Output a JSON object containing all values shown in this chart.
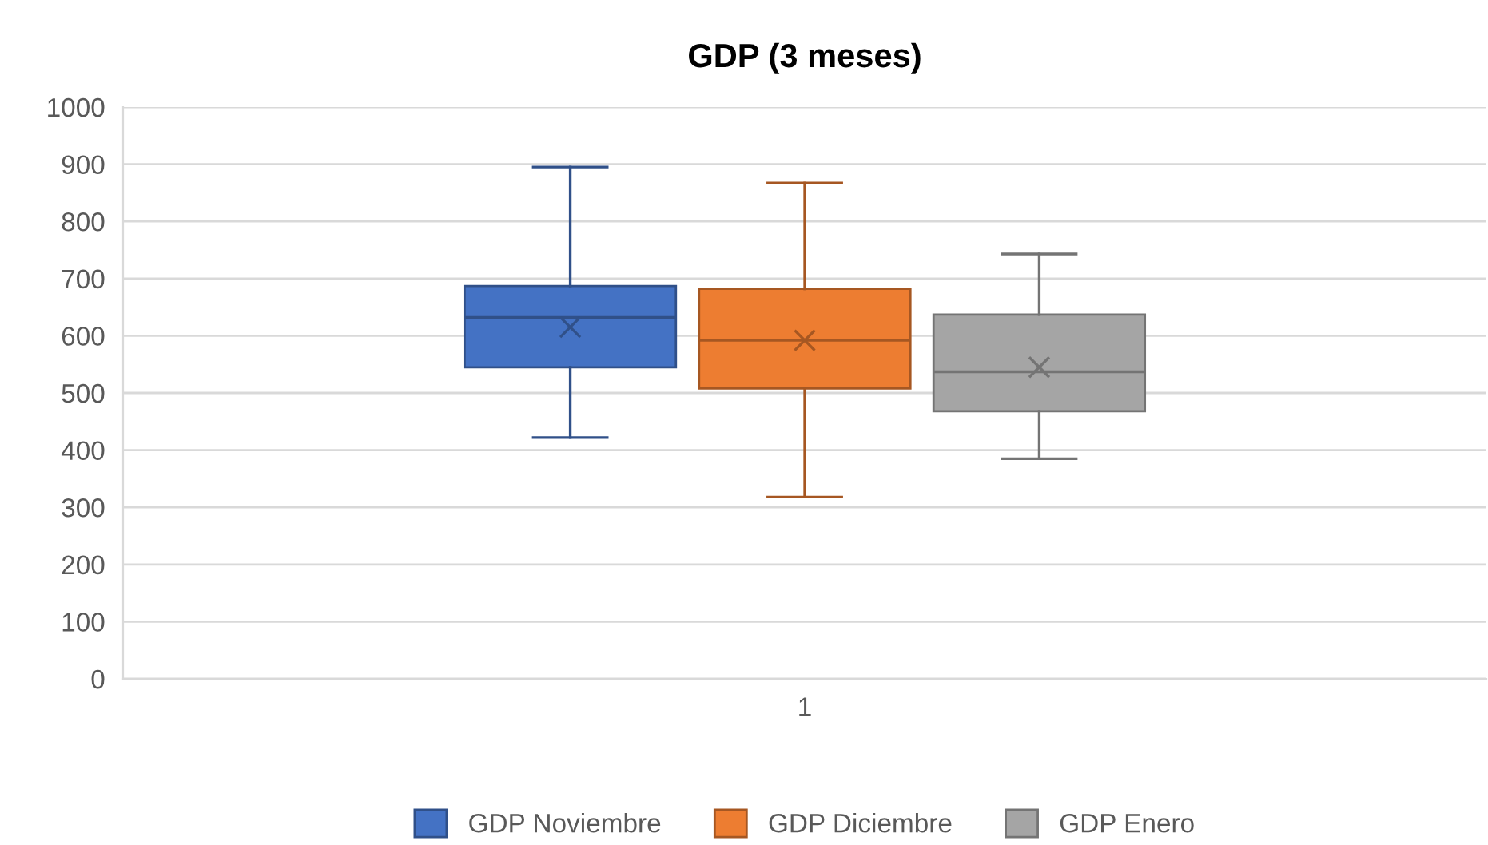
{
  "chart_data": {
    "type": "box",
    "title": "GDP (3 meses)",
    "categories": [
      "1"
    ],
    "ylim": [
      0,
      1000
    ],
    "yticks": [
      0,
      100,
      200,
      300,
      400,
      500,
      600,
      700,
      800,
      900,
      1000
    ],
    "grid": "y",
    "legend": "bottom",
    "series": [
      {
        "name": "GDP Noviembre",
        "color": "#4472c4",
        "boxes": [
          {
            "low": 422,
            "q1": 545,
            "median": 632,
            "q3": 687,
            "high": 895,
            "mean": 615
          }
        ]
      },
      {
        "name": "GDP Diciembre",
        "color": "#ed7d31",
        "boxes": [
          {
            "low": 318,
            "q1": 508,
            "median": 592,
            "q3": 682,
            "high": 867,
            "mean": 592
          }
        ]
      },
      {
        "name": "GDP Enero",
        "color": "#a5a5a5",
        "boxes": [
          {
            "low": 385,
            "q1": 468,
            "median": 537,
            "q3": 637,
            "high": 743,
            "mean": 545
          }
        ]
      }
    ]
  }
}
